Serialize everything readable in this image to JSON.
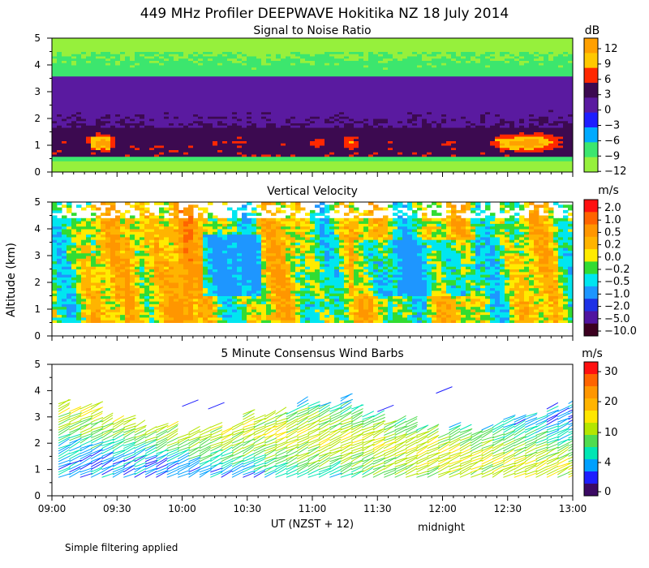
{
  "figure_title": "449 MHz Profiler DEEPWAVE Hokitika NZ 18 July 2014",
  "y_axis_label": "Altitude (km)",
  "x_axis_label": "UT  (NZST + 12)",
  "midnight_label": "midnight",
  "footnote": "Simple filtering applied",
  "chart_data": [
    {
      "type": "heatmap",
      "title": "Signal to Noise Ratio",
      "unit": "dB",
      "ylabel": "Altitude (km)",
      "ylim": [
        0,
        5
      ],
      "yticks": [
        "0",
        "1",
        "2",
        "3",
        "4",
        "5"
      ],
      "xlim_hours_ut": [
        9,
        13
      ],
      "colorbar_levels": [
        "12",
        "9",
        "6",
        "3",
        "0",
        "−3",
        "−6",
        "−9",
        "−12"
      ],
      "colorbar_colors": [
        "#ffa000",
        "#ffc800",
        "#ff2800",
        "#3c0a50",
        "#5a1aa0",
        "#1e1eff",
        "#00aaff",
        "#3ce66e",
        "#96f03c"
      ],
      "description_values": {
        "low_level_max_db": 12,
        "band_km": [
          0.5,
          1.5
        ],
        "upper_level_min_db": -12
      }
    },
    {
      "type": "heatmap",
      "title": "Vertical Velocity",
      "unit": "m/s",
      "ylim": [
        0,
        5
      ],
      "yticks": [
        "0",
        "1",
        "2",
        "3",
        "4",
        "5"
      ],
      "xlim_hours_ut": [
        9,
        13
      ],
      "colorbar_levels": [
        "2.0",
        "1.0",
        "0.5",
        "0.2",
        "0.0",
        "−0.2",
        "−0.5",
        "−1.0",
        "−2.0",
        "−5.0",
        "−10.0"
      ],
      "colorbar_colors": [
        "#ff1010",
        "#ff6400",
        "#ff9600",
        "#ffb400",
        "#ffeb00",
        "#32dc32",
        "#00e6f0",
        "#1e96ff",
        "#1e32e6",
        "#5014a0",
        "#3c0020"
      ]
    },
    {
      "type": "scatter",
      "title": "5 Minute Consensus Wind Barbs",
      "unit": "m/s",
      "ylim": [
        0,
        5
      ],
      "yticks": [
        "0",
        "1",
        "2",
        "3",
        "4",
        "5"
      ],
      "xlim_hours_ut": [
        9,
        13
      ],
      "colorbar_levels": [
        "30",
        "20",
        "10",
        "4",
        "0"
      ],
      "colorbar_colors": [
        "#ff1010",
        "#ff6400",
        "#ff9600",
        "#ffb400",
        "#ffe600",
        "#b4e600",
        "#50dc50",
        "#00e6b4",
        "#00a0ff",
        "#1e1eff",
        "#3c0a64"
      ]
    }
  ],
  "x_ticks": [
    "09:00",
    "09:30",
    "10:00",
    "10:30",
    "11:00",
    "11:30",
    "12:00",
    "12:30",
    "13:00"
  ],
  "x_tick_hours": [
    9,
    9.5,
    10,
    10.5,
    11,
    11.5,
    12,
    12.5,
    13
  ]
}
